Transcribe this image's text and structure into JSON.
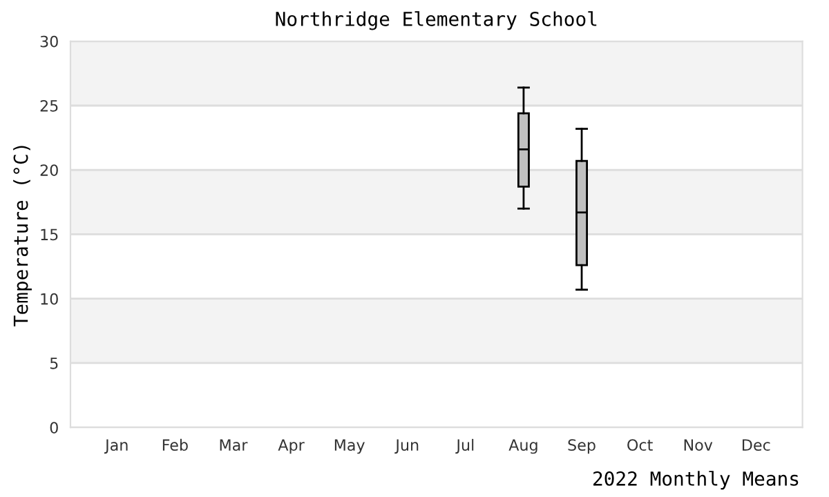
{
  "chart_data": {
    "type": "box",
    "title": "Northridge Elementary School",
    "xlabel": "2022 Monthly Means",
    "ylabel": "Temperature (°C)",
    "categories": [
      "Jan",
      "Feb",
      "Mar",
      "Apr",
      "May",
      "Jun",
      "Jul",
      "Aug",
      "Sep",
      "Oct",
      "Nov",
      "Dec"
    ],
    "series": [
      {
        "color": "#c0c0c0",
        "boxes": [
          null,
          null,
          null,
          null,
          null,
          null,
          null,
          {
            "low": 17.0,
            "q1": 18.7,
            "median": 21.6,
            "q3": 24.4,
            "high": 26.4
          },
          {
            "low": 10.7,
            "q1": 12.6,
            "median": 16.7,
            "q3": 20.7,
            "high": 23.2
          },
          null,
          null,
          null
        ]
      }
    ],
    "ylim": [
      0,
      30
    ],
    "yticks": [
      0,
      5,
      10,
      15,
      20,
      25,
      30
    ],
    "grid": "y",
    "legend": false,
    "bands": [
      {
        "axis": "y",
        "from": 5,
        "to": 10,
        "color": "#f3f3f3"
      },
      {
        "axis": "y",
        "from": 15,
        "to": 20,
        "color": "#f3f3f3"
      },
      {
        "axis": "y",
        "from": 25,
        "to": 30,
        "color": "#f3f3f3"
      }
    ]
  }
}
